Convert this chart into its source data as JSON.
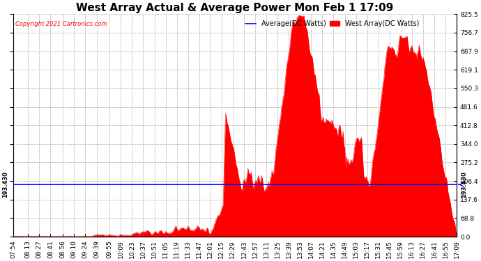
{
  "title": "West Array Actual & Average Power Mon Feb 1 17:09",
  "copyright": "Copyright 2021 Cartronics.com",
  "legend_avg": "Average(DC Watts)",
  "legend_west": "West Array(DC Watts)",
  "avg_value": 193.43,
  "avg_label": "193.430",
  "y_max": 825.5,
  "y_min": 0.0,
  "y_ticks": [
    0.0,
    68.8,
    137.6,
    206.4,
    275.2,
    344.0,
    412.8,
    481.6,
    550.3,
    619.1,
    687.9,
    756.7,
    825.5
  ],
  "color_avg": "#0000ff",
  "color_west": "#ff0000",
  "color_fill": "#ff0000",
  "background": "#ffffff",
  "title_fontsize": 11,
  "tick_fontsize": 6.5,
  "x_labels": [
    "07:54",
    "08:13",
    "08:27",
    "08:41",
    "08:56",
    "09:10",
    "09:24",
    "09:39",
    "09:55",
    "10:09",
    "10:23",
    "10:37",
    "10:51",
    "11:05",
    "11:19",
    "11:33",
    "11:47",
    "12:01",
    "12:15",
    "12:29",
    "12:43",
    "12:57",
    "13:11",
    "13:25",
    "13:39",
    "13:53",
    "14:07",
    "14:21",
    "14:35",
    "14:49",
    "15:03",
    "15:17",
    "15:31",
    "15:45",
    "15:59",
    "16:13",
    "16:27",
    "16:41",
    "16:55",
    "17:09"
  ],
  "start_hhmm": "07:54",
  "end_hhmm": "17:09"
}
